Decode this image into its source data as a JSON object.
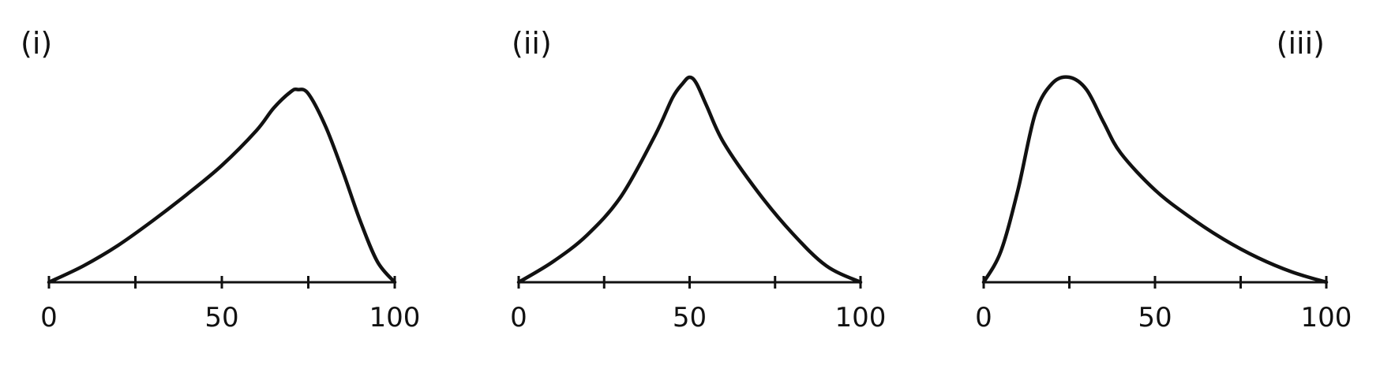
{
  "chart_data": [
    {
      "type": "line",
      "panel_label": "(i)",
      "xlim": [
        0,
        100
      ],
      "ylim": [
        0,
        1
      ],
      "ticks": [
        0,
        25,
        50,
        75,
        100
      ],
      "tick_labels": [
        {
          "value": 0,
          "text": "0"
        },
        {
          "value": 50,
          "text": "50"
        },
        {
          "value": 100,
          "text": "100"
        }
      ],
      "series": [
        {
          "x": [
            0,
            10,
            20,
            30,
            40,
            50,
            60,
            65,
            70,
            72,
            75,
            80,
            85,
            90,
            95,
            100
          ],
          "y": [
            0.0,
            0.08,
            0.18,
            0.3,
            0.43,
            0.57,
            0.74,
            0.85,
            0.93,
            0.94,
            0.92,
            0.76,
            0.54,
            0.3,
            0.1,
            0.0
          ]
        }
      ]
    },
    {
      "type": "line",
      "panel_label": "(ii)",
      "xlim": [
        0,
        100
      ],
      "ylim": [
        0,
        1
      ],
      "ticks": [
        0,
        25,
        50,
        75,
        100
      ],
      "tick_labels": [
        {
          "value": 0,
          "text": "0"
        },
        {
          "value": 50,
          "text": "50"
        },
        {
          "value": 100,
          "text": "100"
        }
      ],
      "series": [
        {
          "x": [
            0,
            10,
            20,
            30,
            40,
            45,
            48,
            50,
            52,
            55,
            60,
            70,
            80,
            90,
            100
          ],
          "y": [
            0.0,
            0.1,
            0.23,
            0.42,
            0.72,
            0.9,
            0.97,
            1.0,
            0.97,
            0.86,
            0.68,
            0.44,
            0.24,
            0.08,
            0.0
          ]
        }
      ]
    },
    {
      "type": "line",
      "panel_label": "(iii)",
      "xlim": [
        0,
        100
      ],
      "ylim": [
        0,
        1
      ],
      "ticks": [
        0,
        25,
        50,
        75,
        100
      ],
      "tick_labels": [
        {
          "value": 0,
          "text": "0"
        },
        {
          "value": 50,
          "text": "50"
        },
        {
          "value": 100,
          "text": "100"
        }
      ],
      "series": [
        {
          "x": [
            0,
            5,
            10,
            15,
            20,
            25,
            30,
            35,
            40,
            50,
            60,
            70,
            80,
            90,
            100
          ],
          "y": [
            0.0,
            0.15,
            0.45,
            0.82,
            0.97,
            1.0,
            0.94,
            0.78,
            0.63,
            0.45,
            0.32,
            0.21,
            0.12,
            0.05,
            0.0
          ]
        }
      ]
    }
  ]
}
